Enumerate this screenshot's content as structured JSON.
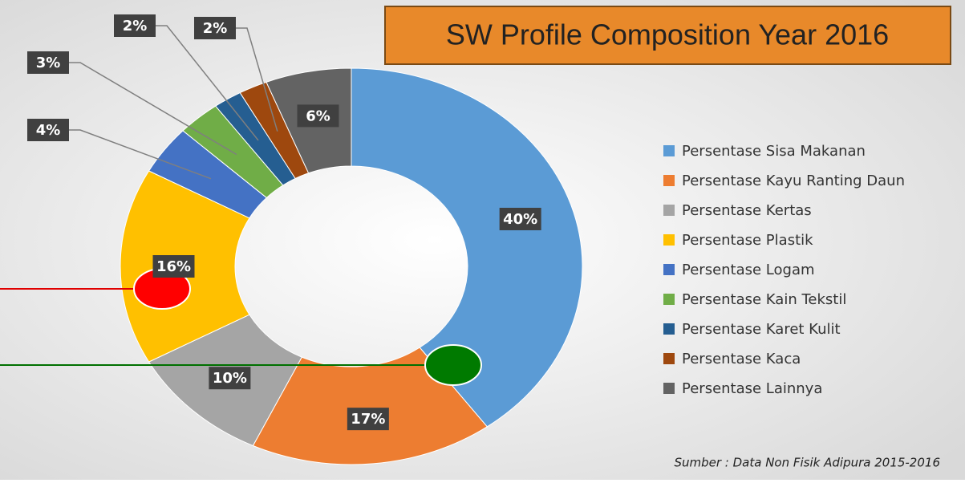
{
  "chart_data": {
    "type": "donut",
    "title": "SW Profile Composition Year 2016",
    "source": "Sumber : Data Non Fisik Adipura 2015-2016",
    "categories": [
      "Persentase Sisa Makanan",
      "Persentase Kayu Ranting Daun",
      "Persentase Kertas",
      "Persentase Plastik",
      "Persentase Logam",
      "Persentase Kain Tekstil",
      "Persentase Karet Kulit",
      "Persentase Kaca",
      "Persentase Lainnya"
    ],
    "values": [
      40,
      17,
      10,
      16,
      4,
      3,
      2,
      2,
      6
    ],
    "value_labels": [
      "40%",
      "17%",
      "10%",
      "16%",
      "4%",
      "3%",
      "2%",
      "2%",
      "6%"
    ],
    "colors": [
      "#5b9bd5",
      "#ed7d31",
      "#a5a5a5",
      "#ffc000",
      "#4472c4",
      "#70ad47",
      "#255e91",
      "#9e480e",
      "#636363"
    ],
    "legend": "right"
  }
}
